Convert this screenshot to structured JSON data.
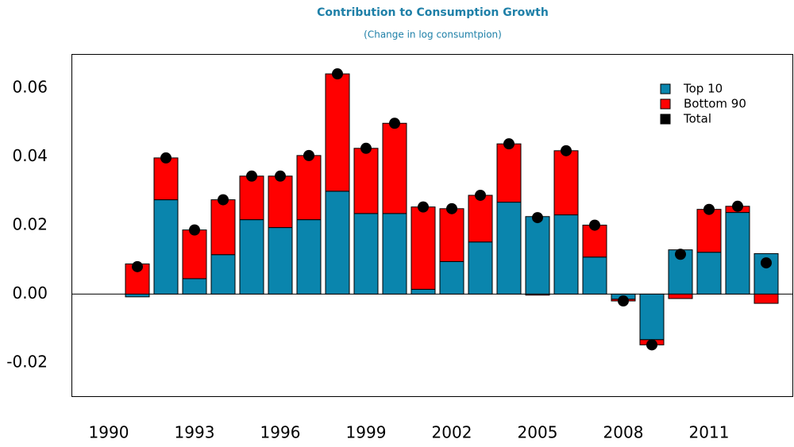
{
  "chart_data": {
    "type": "bar",
    "stacked": true,
    "title": "Contribution to Consumption Growth",
    "subtitle": "(Change in log consumtpion)",
    "categories": [
      "1990",
      null,
      null,
      "1993",
      null,
      null,
      "1996",
      null,
      null,
      "1999",
      null,
      null,
      "2002",
      null,
      null,
      "2005",
      null,
      null,
      "2008",
      null,
      null,
      "2011",
      null,
      null
    ],
    "series": [
      {
        "name": "Top 10",
        "color": "#0a85ad",
        "values": [
          null,
          -0.0008,
          0.0275,
          0.0045,
          0.0115,
          0.0217,
          0.0194,
          0.0217,
          0.03,
          0.0235,
          0.0235,
          0.0014,
          0.0095,
          0.0152,
          0.0268,
          0.0226,
          0.0231,
          0.0108,
          -0.0015,
          -0.0133,
          0.0129,
          0.0122,
          0.0238,
          0.0118
        ]
      },
      {
        "name": "Bottom 90",
        "color": "#ff0000",
        "values": [
          null,
          0.0088,
          0.0122,
          0.0142,
          0.016,
          0.0127,
          0.015,
          0.0187,
          0.0342,
          0.019,
          0.0263,
          0.024,
          0.0154,
          0.0136,
          0.017,
          -0.0003,
          0.0187,
          0.0093,
          -0.0005,
          -0.0015,
          -0.0013,
          0.0125,
          0.0018,
          -0.0027
        ]
      },
      {
        "name": "Total",
        "color": "#000000",
        "type": "scatter",
        "values": [
          null,
          0.008,
          0.0397,
          0.0187,
          0.0275,
          0.0344,
          0.0344,
          0.0404,
          0.0642,
          0.0425,
          0.0498,
          0.0254,
          0.0249,
          0.0288,
          0.0438,
          0.0223,
          0.0418,
          0.0201,
          -0.002,
          -0.0148,
          0.0116,
          0.0247,
          0.0256,
          0.0091
        ]
      }
    ],
    "ylim": [
      -0.03,
      0.07
    ],
    "yticks": [
      -0.02,
      {
        "value": 0,
        "label": "0.00"
      },
      0.02,
      0.04,
      0.06
    ],
    "grid": false,
    "legend": "top-right"
  }
}
